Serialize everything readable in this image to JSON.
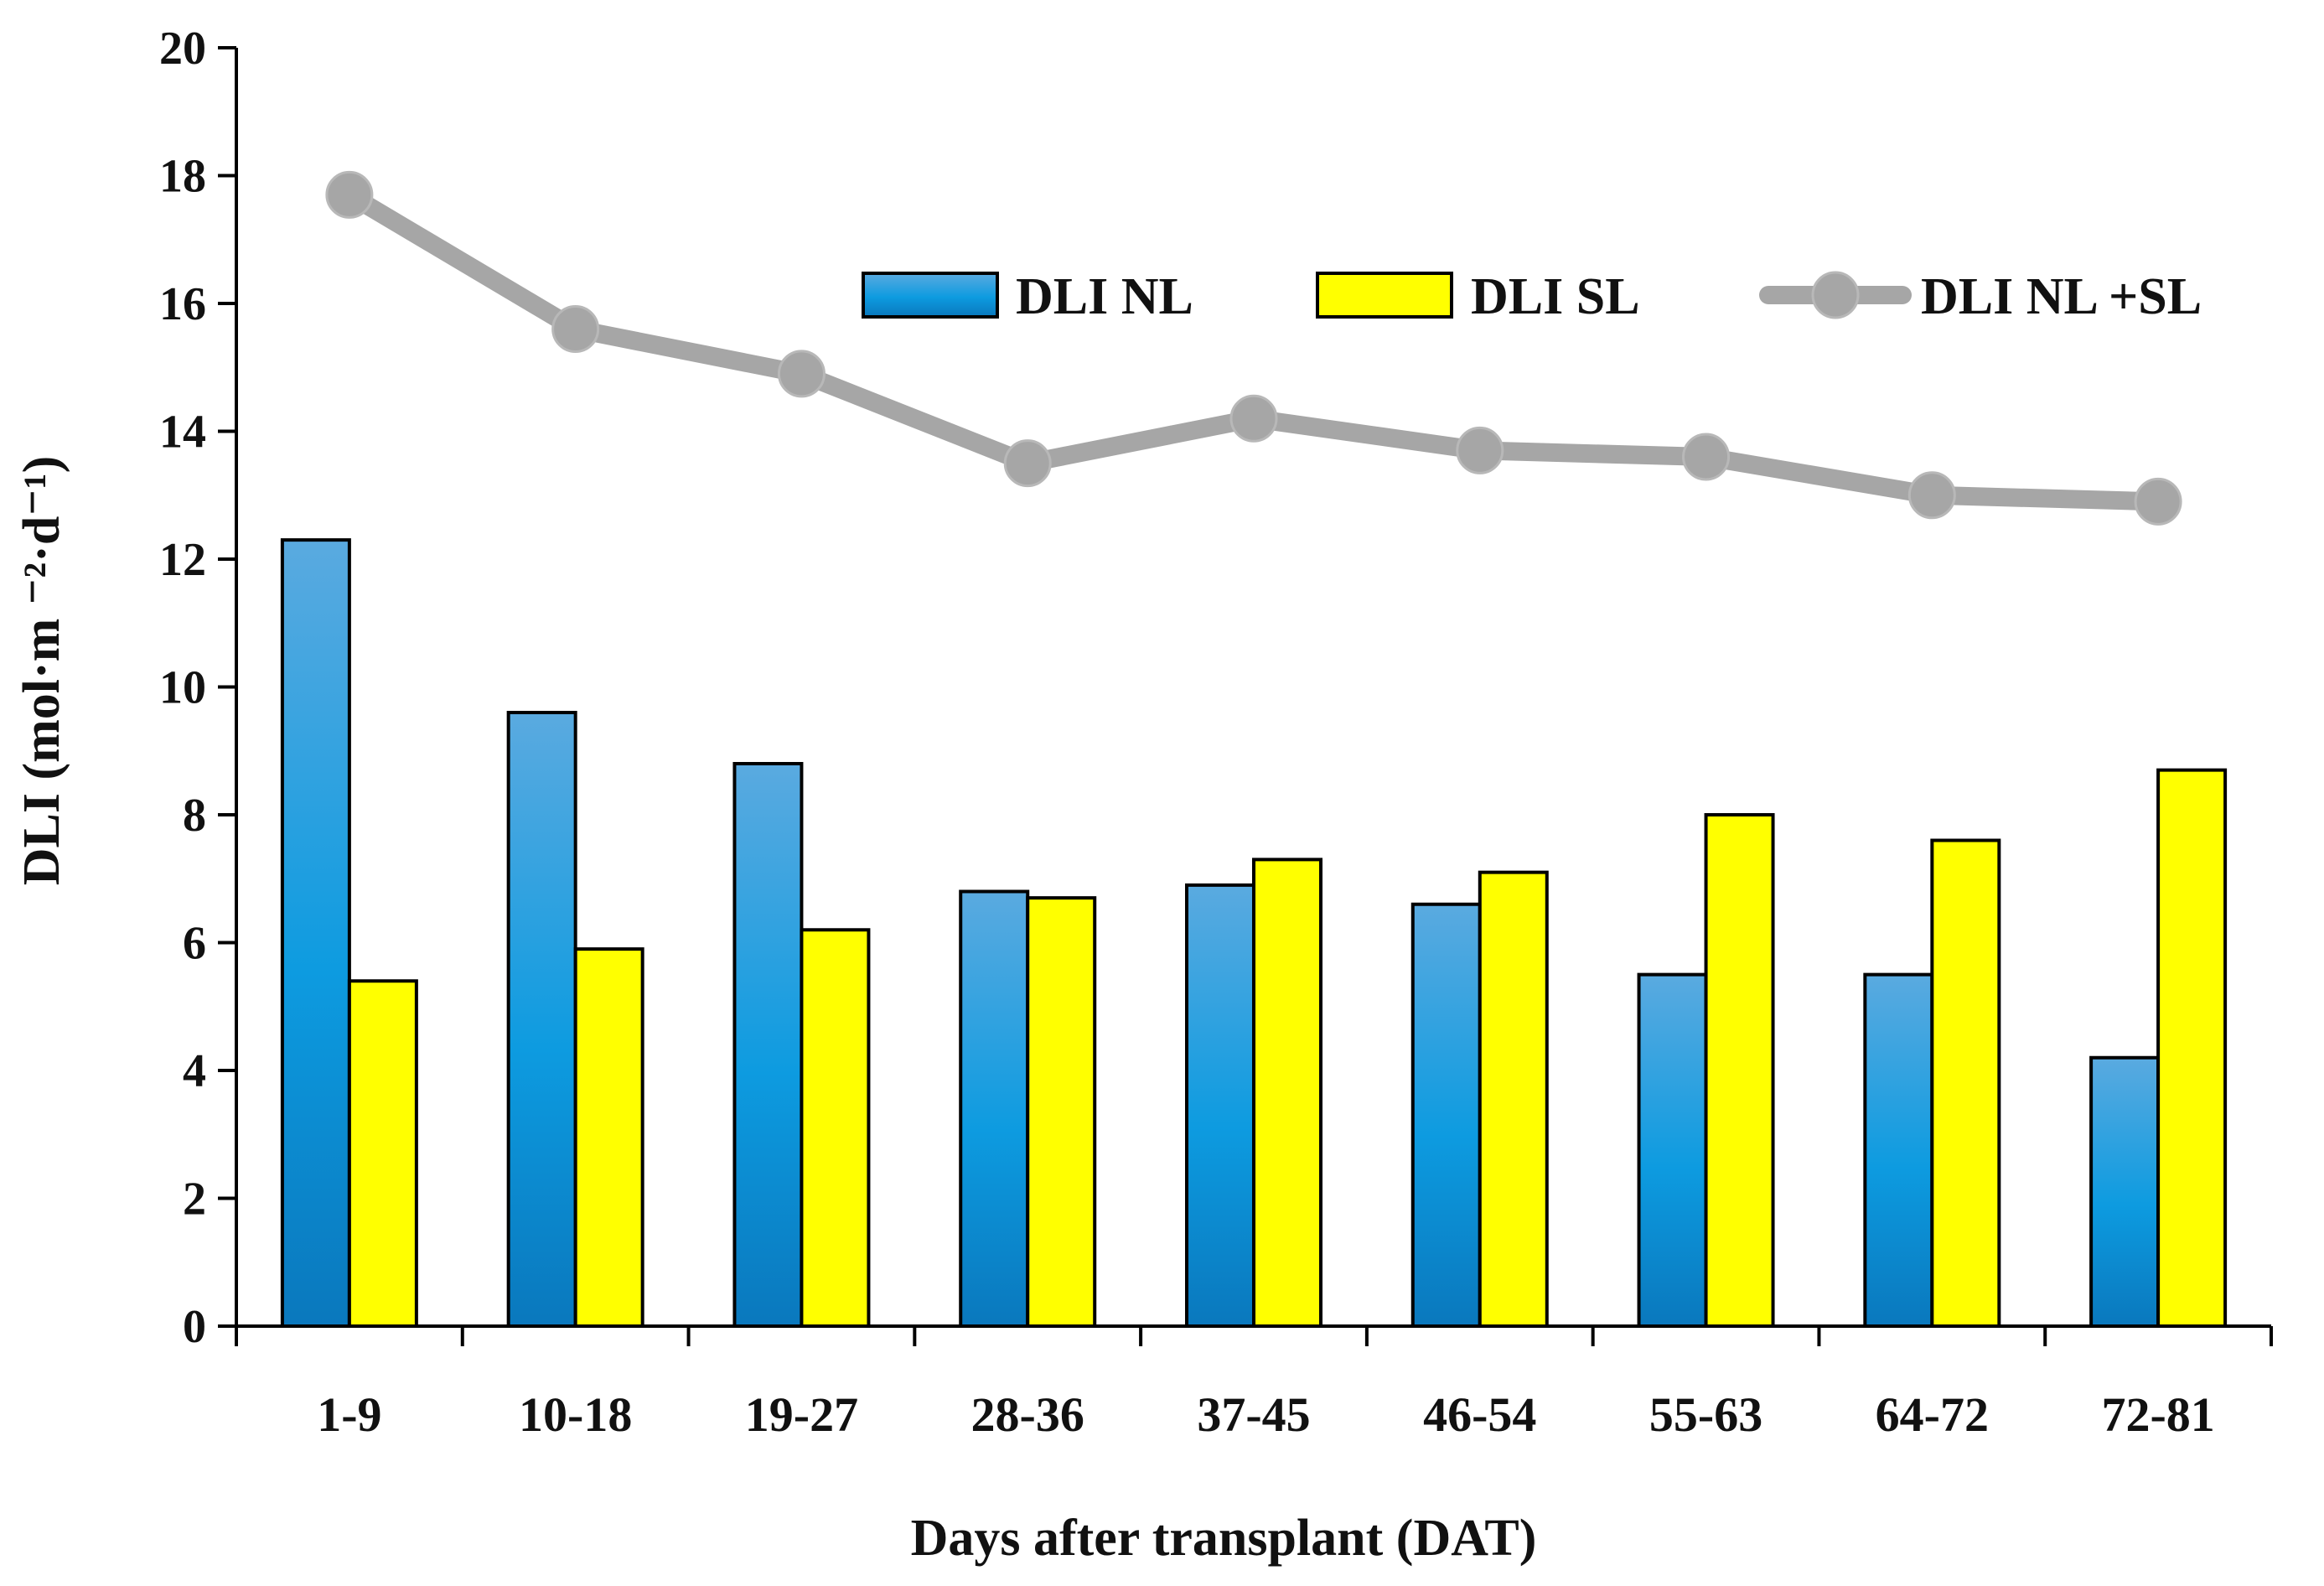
{
  "chart_data": {
    "type": "bar",
    "title": "",
    "xlabel": "Days after transplant (DAT)",
    "ylabel": "DLI  (mol·m ⁻²·d⁻¹)",
    "ylim": [
      0,
      20
    ],
    "yticks": [
      "0",
      "2",
      "4",
      "6",
      "8",
      "10",
      "12",
      "14",
      "16",
      "18",
      "20"
    ],
    "categories": [
      "1-9",
      "10-18",
      "19-27",
      "28-36",
      "37-45",
      "46-54",
      "55-63",
      "64-72",
      "72-81"
    ],
    "grid": false,
    "legend_position": "top-right",
    "series": [
      {
        "name": "DLI NL",
        "kind": "bar",
        "color": "#1a8fd6",
        "values": [
          12.3,
          9.6,
          8.8,
          6.8,
          6.9,
          6.6,
          5.5,
          5.5,
          4.2
        ]
      },
      {
        "name": "DLI SL",
        "kind": "bar",
        "color": "#ffff00",
        "values": [
          5.4,
          5.9,
          6.2,
          6.7,
          7.3,
          7.1,
          8.0,
          7.6,
          8.7
        ]
      },
      {
        "name": "DLI NL +SL",
        "kind": "line",
        "color": "#a6a6a6",
        "values": [
          17.7,
          15.6,
          14.9,
          13.5,
          14.2,
          13.7,
          13.6,
          13.0,
          12.9
        ]
      }
    ]
  }
}
